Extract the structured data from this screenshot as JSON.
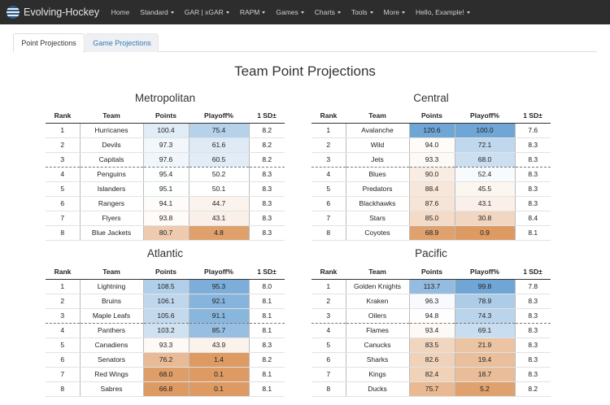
{
  "navbar": {
    "brand": "Evolving-Hockey",
    "items": [
      {
        "label": "Home",
        "dropdown": false
      },
      {
        "label": "Standard",
        "dropdown": true
      },
      {
        "label": "GAR | xGAR",
        "dropdown": true
      },
      {
        "label": "RAPM",
        "dropdown": true
      },
      {
        "label": "Games",
        "dropdown": true
      },
      {
        "label": "Charts",
        "dropdown": true
      },
      {
        "label": "Tools",
        "dropdown": true
      },
      {
        "label": "More",
        "dropdown": true
      },
      {
        "label": "Hello, Example!",
        "dropdown": true
      }
    ]
  },
  "tabs": [
    {
      "label": "Point Projections",
      "active": true
    },
    {
      "label": "Game Projections",
      "active": false
    }
  ],
  "page_title": "Team Point Projections",
  "columns": [
    "Rank",
    "Team",
    "Points",
    "Playoff%",
    "1 SD±"
  ],
  "colors": {
    "strong_blue": "#6fa6d6",
    "strong_orange": "#dd9a63",
    "neutral": "#ffffff"
  },
  "divisions": [
    {
      "name": "Metropolitan",
      "rows": [
        {
          "rank": "1",
          "team": "Hurricanes",
          "points": "100.4",
          "playoff": "75.4",
          "sd": "8.2"
        },
        {
          "rank": "2",
          "team": "Devils",
          "points": "97.3",
          "playoff": "61.6",
          "sd": "8.2"
        },
        {
          "rank": "3",
          "team": "Capitals",
          "points": "97.6",
          "playoff": "60.5",
          "sd": "8.2"
        },
        {
          "rank": "4",
          "team": "Penguins",
          "points": "95.4",
          "playoff": "50.2",
          "sd": "8.3"
        },
        {
          "rank": "5",
          "team": "Islanders",
          "points": "95.1",
          "playoff": "50.1",
          "sd": "8.3"
        },
        {
          "rank": "6",
          "team": "Rangers",
          "points": "94.1",
          "playoff": "44.7",
          "sd": "8.3"
        },
        {
          "rank": "7",
          "team": "Flyers",
          "points": "93.8",
          "playoff": "43.1",
          "sd": "8.3"
        },
        {
          "rank": "8",
          "team": "Blue Jackets",
          "points": "80.7",
          "playoff": "4.8",
          "sd": "8.3"
        }
      ]
    },
    {
      "name": "Central",
      "rows": [
        {
          "rank": "1",
          "team": "Avalanche",
          "points": "120.6",
          "playoff": "100.0",
          "sd": "7.6"
        },
        {
          "rank": "2",
          "team": "Wild",
          "points": "94.0",
          "playoff": "72.1",
          "sd": "8.3"
        },
        {
          "rank": "3",
          "team": "Jets",
          "points": "93.3",
          "playoff": "68.0",
          "sd": "8.3"
        },
        {
          "rank": "4",
          "team": "Blues",
          "points": "90.0",
          "playoff": "52.4",
          "sd": "8.3"
        },
        {
          "rank": "5",
          "team": "Predators",
          "points": "88.4",
          "playoff": "45.5",
          "sd": "8.3"
        },
        {
          "rank": "6",
          "team": "Blackhawks",
          "points": "87.6",
          "playoff": "43.1",
          "sd": "8.3"
        },
        {
          "rank": "7",
          "team": "Stars",
          "points": "85.0",
          "playoff": "30.8",
          "sd": "8.4"
        },
        {
          "rank": "8",
          "team": "Coyotes",
          "points": "68.9",
          "playoff": "0.9",
          "sd": "8.1"
        }
      ]
    },
    {
      "name": "Atlantic",
      "rows": [
        {
          "rank": "1",
          "team": "Lightning",
          "points": "108.5",
          "playoff": "95.3",
          "sd": "8.0"
        },
        {
          "rank": "2",
          "team": "Bruins",
          "points": "106.1",
          "playoff": "92.1",
          "sd": "8.1"
        },
        {
          "rank": "3",
          "team": "Maple Leafs",
          "points": "105.6",
          "playoff": "91.1",
          "sd": "8.1"
        },
        {
          "rank": "4",
          "team": "Panthers",
          "points": "103.2",
          "playoff": "85.7",
          "sd": "8.1"
        },
        {
          "rank": "5",
          "team": "Canadiens",
          "points": "93.3",
          "playoff": "43.9",
          "sd": "8.3"
        },
        {
          "rank": "6",
          "team": "Senators",
          "points": "76.2",
          "playoff": "1.4",
          "sd": "8.2"
        },
        {
          "rank": "7",
          "team": "Red Wings",
          "points": "68.0",
          "playoff": "0.1",
          "sd": "8.1"
        },
        {
          "rank": "8",
          "team": "Sabres",
          "points": "66.8",
          "playoff": "0.1",
          "sd": "8.1"
        }
      ]
    },
    {
      "name": "Pacific",
      "rows": [
        {
          "rank": "1",
          "team": "Golden Knights",
          "points": "113.7",
          "playoff": "99.8",
          "sd": "7.8"
        },
        {
          "rank": "2",
          "team": "Kraken",
          "points": "96.3",
          "playoff": "78.9",
          "sd": "8.3"
        },
        {
          "rank": "3",
          "team": "Oilers",
          "points": "94.8",
          "playoff": "74.3",
          "sd": "8.3"
        },
        {
          "rank": "4",
          "team": "Flames",
          "points": "93.4",
          "playoff": "69.1",
          "sd": "8.3"
        },
        {
          "rank": "5",
          "team": "Canucks",
          "points": "83.5",
          "playoff": "21.9",
          "sd": "8.3"
        },
        {
          "rank": "6",
          "team": "Sharks",
          "points": "82.6",
          "playoff": "19.4",
          "sd": "8.3"
        },
        {
          "rank": "7",
          "team": "Kings",
          "points": "82.4",
          "playoff": "18.7",
          "sd": "8.3"
        },
        {
          "rank": "8",
          "team": "Ducks",
          "points": "75.7",
          "playoff": "5.2",
          "sd": "8.2"
        }
      ]
    }
  ]
}
